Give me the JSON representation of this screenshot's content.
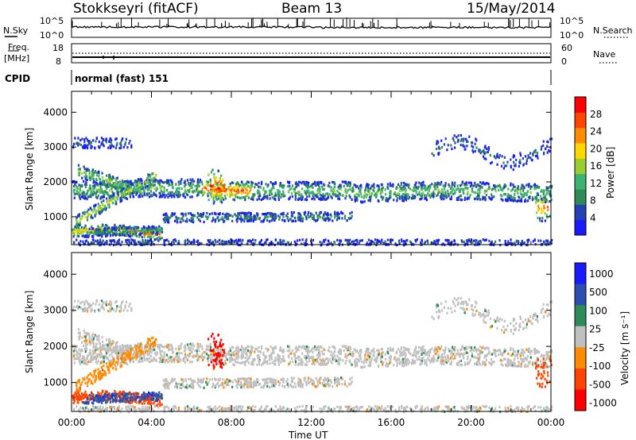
{
  "header": {
    "station": "Stokkseyri (fitACF)",
    "beam": "Beam 13",
    "date": "15/May/2014"
  },
  "noise_panel": {
    "left_label": "N.Sky",
    "right_label": "N.Search",
    "left_ticks": [
      "10^5",
      "10^0"
    ],
    "right_ticks": [
      "10^5",
      "10^0"
    ]
  },
  "freq_panel": {
    "left_label_1": "Freq.",
    "left_label_2": "[MHz]",
    "right_label": "Nave",
    "left_ticks": [
      "18",
      "8"
    ],
    "right_ticks": [
      "60",
      "0"
    ]
  },
  "cpid": {
    "label": "CPID",
    "mode": "normal (fast) 151"
  },
  "x_axis": {
    "label": "Time UT",
    "ticks": [
      "00:00",
      "04:00",
      "08:00",
      "12:00",
      "16:00",
      "20:00",
      "00:00"
    ]
  },
  "colors": {
    "power_scale": [
      "#1a1aff",
      "#2442b4",
      "#2e8b57",
      "#3cb371",
      "#9acd32",
      "#ffd700",
      "#ff8c00",
      "#ff4500",
      "#ff0000"
    ],
    "velocity_scale": [
      "#1a1aff",
      "#2b4fb0",
      "#2e8b57",
      "#c0c0c0",
      "#ff8c00",
      "#ff4500",
      "#ff0000"
    ],
    "ground_scatter": "#c0c0c0"
  },
  "chart_data": [
    {
      "type": "heatmap",
      "name": "power",
      "xlabel": "",
      "ylabel": "Slant Range [km]",
      "x_range_hours": [
        0,
        24
      ],
      "ylim": [
        200,
        4600
      ],
      "yticks": [
        1000,
        2000,
        3000,
        4000
      ],
      "colorbar": {
        "label": "Power [dB]",
        "ticks": [
          "4",
          "8",
          "12",
          "16",
          "20",
          "24",
          "28"
        ],
        "range": [
          0,
          32
        ]
      }
    },
    {
      "type": "heatmap",
      "name": "velocity",
      "xlabel": "Time UT",
      "ylabel": "Slant Range [km]",
      "x_range_hours": [
        0,
        24
      ],
      "ylim": [
        200,
        4600
      ],
      "yticks": [
        1000,
        2000,
        3000,
        4000
      ],
      "colorbar": {
        "label": "Velocity [m s⁻¹]",
        "ticks": [
          "1000",
          "500",
          "100",
          "25",
          "-25",
          "-100",
          "-500",
          "-1000"
        ]
      }
    }
  ]
}
